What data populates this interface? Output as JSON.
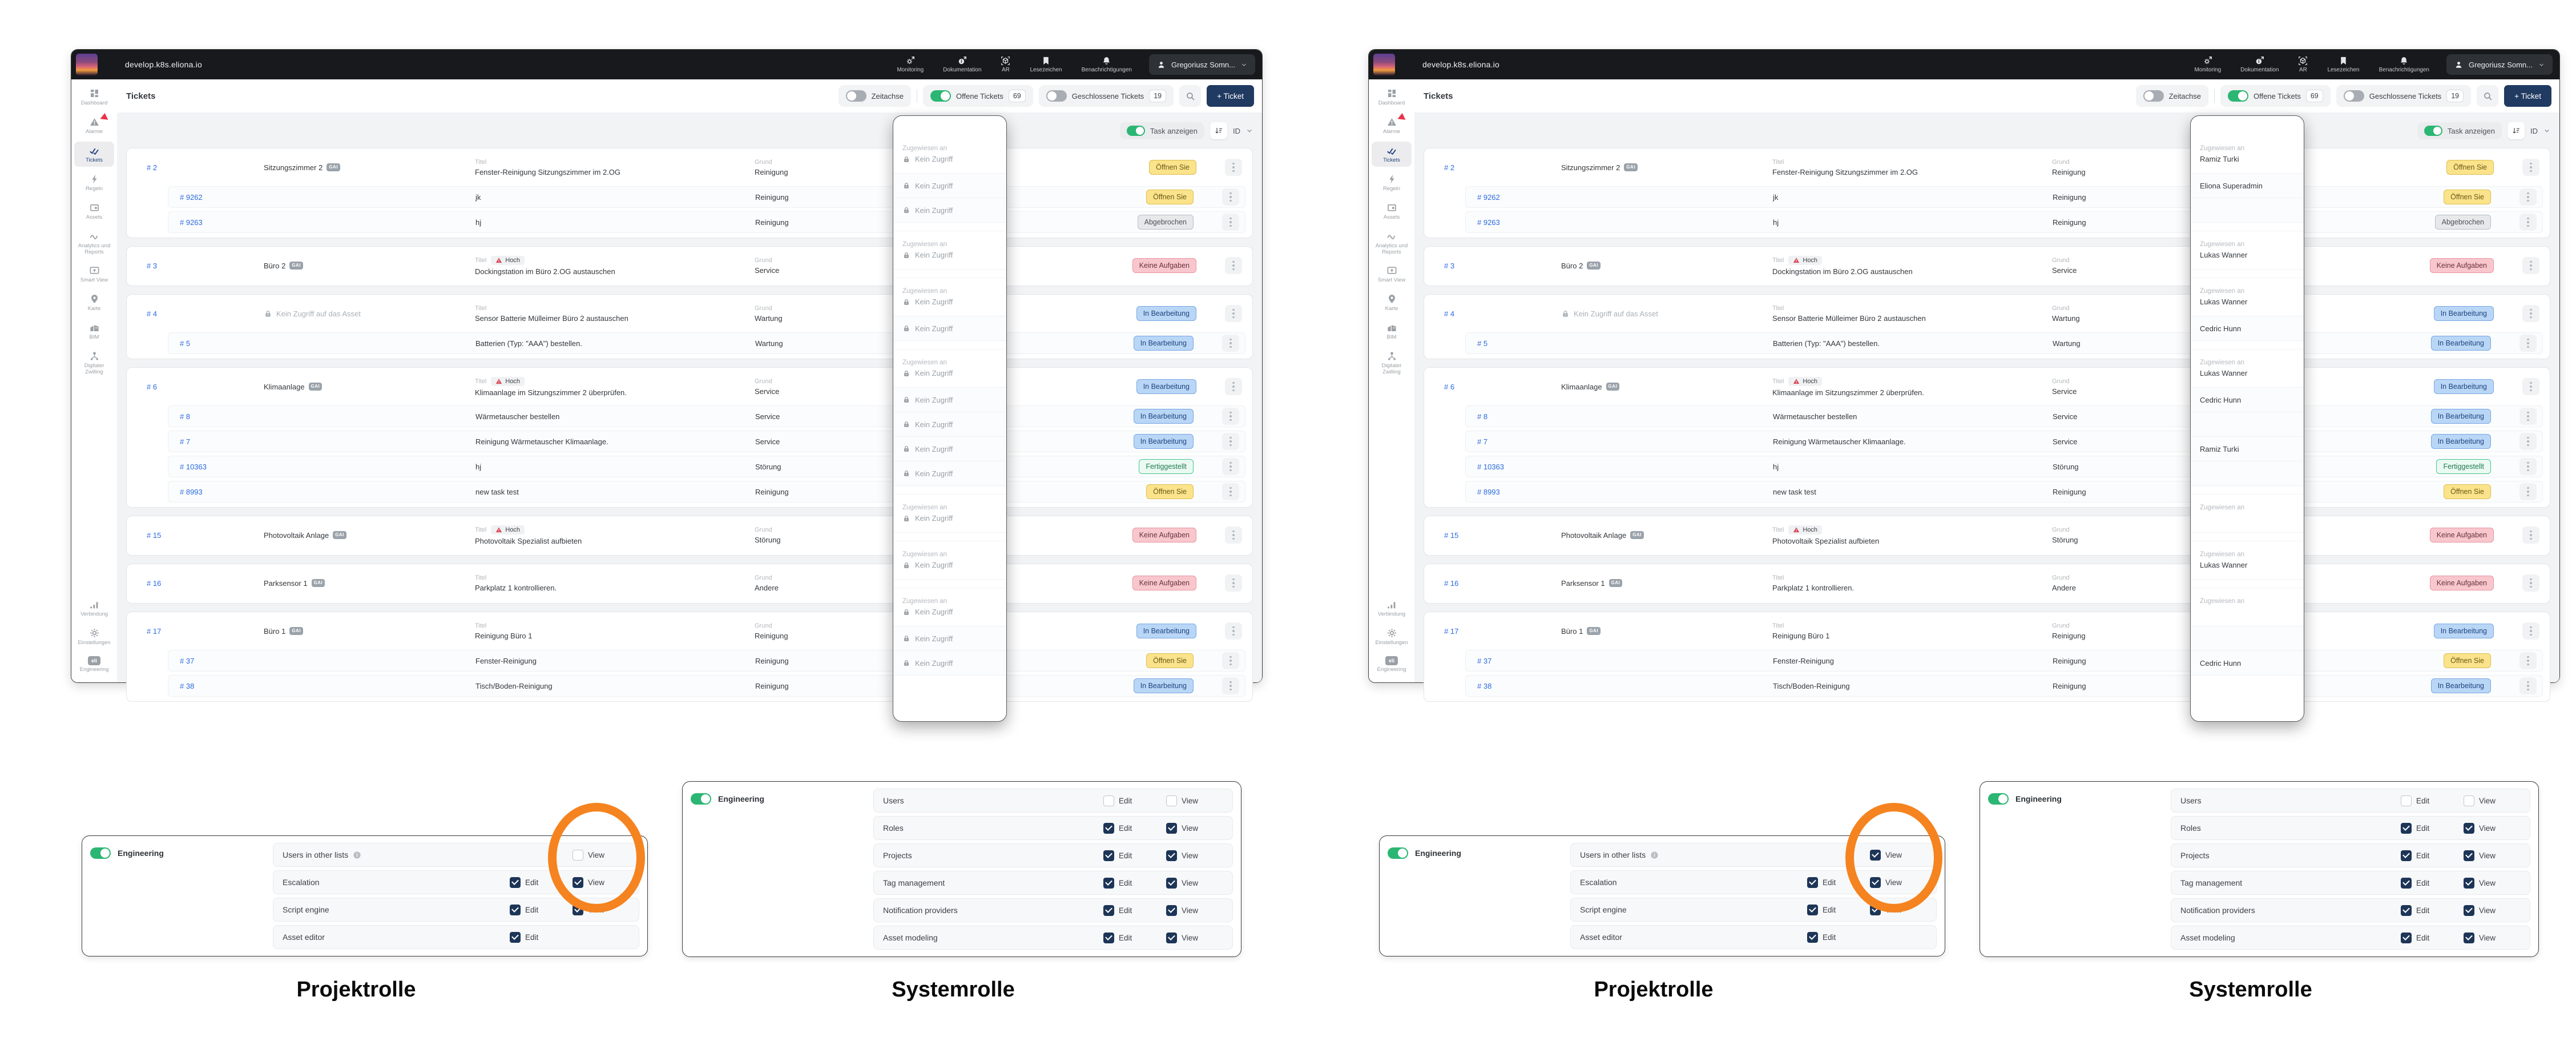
{
  "window": {
    "topbar": {
      "domain": "develop.k8s.eliona.io",
      "nav": [
        {
          "icon": "monitoring",
          "label": "Monitoring"
        },
        {
          "icon": "docs",
          "label": "Dokumentation"
        },
        {
          "icon": "ar",
          "label": "AR"
        },
        {
          "icon": "bookmark",
          "label": "Lesezeichen"
        },
        {
          "icon": "bell",
          "label": "Benachrichtigungen"
        }
      ],
      "user": "Gregoriusz Somn..."
    },
    "toolbar": {
      "title": "Tickets",
      "timeline_label": "Zeitachse",
      "open_label": "Offene Tickets",
      "open_count": "69",
      "closed_label": "Geschlossene Tickets",
      "closed_count": "19",
      "add_button": "+ Ticket"
    },
    "sidebar_top": [
      {
        "icon": "grid",
        "label": "Dashboard"
      },
      {
        "icon": "alarm",
        "label": "Alarme",
        "badge": true
      },
      {
        "icon": "tickets",
        "label": "Tickets",
        "active": true
      },
      {
        "icon": "bolt",
        "label": "Regeln"
      },
      {
        "icon": "assets",
        "label": "Assets"
      },
      {
        "icon": "wave",
        "label": "Analytics und Reports"
      },
      {
        "icon": "smartview",
        "label": "Smart View"
      },
      {
        "icon": "pin",
        "label": "Karte"
      },
      {
        "icon": "bim",
        "label": "BIM"
      },
      {
        "icon": "twin",
        "label": "Digitaler Zwilling"
      }
    ],
    "sidebar_bottom": [
      {
        "icon": "signal",
        "label": "Verbindung"
      },
      {
        "icon": "gear",
        "label": "Einstellungen"
      },
      {
        "icon": "eli",
        "label": "Engineering"
      }
    ],
    "list_header": {
      "task_toggle": "Task anzeigen",
      "sort_label": "ID"
    },
    "col_title": "Titel",
    "col_reason": "Grund",
    "assigned_label": "Zugewiesen an",
    "no_access": "Kein Zugriff",
    "no_asset_access": "Kein Zugriff auf das Asset",
    "gai_badge": "GAI"
  },
  "tickets": [
    {
      "id": "# 2",
      "asset": "Sitzungszimmer 2",
      "title": "Fenster-Reinigung Sitzungszimmer im 2.OG",
      "reason": "Reinigung",
      "status": "Öffnen Sie",
      "status_type": "open",
      "assignee": "Ramiz Turki",
      "subs": [
        {
          "id": "# 9262",
          "title": "jk",
          "reason": "Reinigung",
          "status": "Öffnen Sie",
          "status_type": "open",
          "assignee": "Eliona Superadmin"
        },
        {
          "id": "# 9263",
          "title": "hj",
          "reason": "Reinigung",
          "status": "Abgebrochen",
          "status_type": "cancelled",
          "assignee": ""
        }
      ]
    },
    {
      "id": "# 3",
      "asset": "Büro 2",
      "priority": "Hoch",
      "title": "Dockingstation im Büro 2.OG austauschen",
      "reason": "Service",
      "status": "Keine Aufgaben",
      "status_type": "none",
      "assignee": "Lukas Wanner",
      "subs": []
    },
    {
      "id": "# 4",
      "locked": true,
      "title": "Sensor Batterie Mülleimer Büro 2 austauschen",
      "reason": "Wartung",
      "status": "In Bearbeitung",
      "status_type": "progress",
      "assignee": "Lukas Wanner",
      "subs": [
        {
          "id": "# 5",
          "title": "Batterien (Typ: \"AAA\") bestellen.",
          "reason": "Wartung",
          "status": "In Bearbeitung",
          "status_type": "progress",
          "assignee": "Cedric Hunn"
        }
      ]
    },
    {
      "id": "# 6",
      "asset": "Klimaanlage",
      "priority": "Hoch",
      "title": "Klimaanlage im Sitzungszimmer 2 überprüfen.",
      "reason": "Service",
      "status": "In Bearbeitung",
      "status_type": "progress",
      "assignee": "Lukas Wanner",
      "subs": [
        {
          "id": "# 8",
          "title": "Wärmetauscher bestellen",
          "reason": "Service",
          "status": "In Bearbeitung",
          "status_type": "progress",
          "assignee": "Cedric Hunn"
        },
        {
          "id": "# 7",
          "title": "Reinigung Wärmetauscher Klimaanlage.",
          "reason": "Service",
          "status": "In Bearbeitung",
          "status_type": "progress",
          "assignee": ""
        },
        {
          "id": "# 10363",
          "title": "hj",
          "reason": "Störung",
          "status": "Fertiggestellt",
          "status_type": "done",
          "assignee": "Ramiz Turki"
        },
        {
          "id": "# 8993",
          "title": "new task test",
          "reason": "Reinigung",
          "status": "Öffnen Sie",
          "status_type": "open",
          "assignee": ""
        }
      ]
    },
    {
      "id": "# 15",
      "asset": "Photovoltaik Anlage",
      "priority": "Hoch",
      "title": "Photovoltaik Spezialist aufbieten",
      "reason": "Störung",
      "status": "Keine Aufgaben",
      "status_type": "none",
      "assignee": "",
      "subs": []
    },
    {
      "id": "# 16",
      "asset": "Parksensor 1",
      "title": "Parkplatz 1 kontrollieren.",
      "reason": "Andere",
      "status": "Keine Aufgaben",
      "status_type": "none",
      "assignee": "Lukas Wanner",
      "subs": []
    },
    {
      "id": "# 17",
      "asset": "Büro 1",
      "title": "Reinigung Büro 1",
      "reason": "Reinigung",
      "status": "In Bearbeitung",
      "status_type": "progress",
      "assignee": "",
      "subs": [
        {
          "id": "# 37",
          "title": "Fenster-Reinigung",
          "reason": "Reinigung",
          "status": "Öffnen Sie",
          "status_type": "open",
          "assignee": ""
        },
        {
          "id": "# 38",
          "title": "Tisch/Boden-Reinigung",
          "reason": "Reinigung",
          "status": "In Bearbeitung",
          "status_type": "progress",
          "assignee": "Cedric Hunn"
        }
      ]
    }
  ],
  "status_colors": {
    "open": "#fbe38b",
    "cancelled": "#e7e8ea",
    "none": "#f8c7cd",
    "progress": "#b9d6f6",
    "done": "#eafaf2"
  },
  "panels": {
    "toggle_label": "Engineering",
    "check_labels": {
      "edit": "Edit",
      "view": "View"
    },
    "project": {
      "rows": [
        {
          "label": "Users in other lists",
          "info": true,
          "view": {
            "left": false,
            "right": true,
            "circled": true
          }
        },
        {
          "label": "Escalation",
          "edit": {
            "left": true,
            "right": true
          },
          "view": {
            "left": true,
            "right": true
          }
        },
        {
          "label": "Script engine",
          "edit": {
            "left": true,
            "right": true
          },
          "view": {
            "left": true,
            "right": true
          }
        },
        {
          "label": "Asset editor",
          "edit": {
            "left": true,
            "right": true
          }
        }
      ]
    },
    "system": {
      "rows": [
        {
          "label": "Users",
          "edit": {
            "left": false,
            "right": false
          },
          "view": {
            "left": false,
            "right": false
          }
        },
        {
          "label": "Roles",
          "edit": {
            "left": true,
            "right": true
          },
          "view": {
            "left": true,
            "right": true
          }
        },
        {
          "label": "Projects",
          "edit": {
            "left": true,
            "right": true
          },
          "view": {
            "left": true,
            "right": true
          }
        },
        {
          "label": "Tag management",
          "edit": {
            "left": true,
            "right": true
          },
          "view": {
            "left": true,
            "right": true
          }
        },
        {
          "label": "Notification providers",
          "edit": {
            "left": true,
            "right": true
          },
          "view": {
            "left": true,
            "right": true
          }
        },
        {
          "label": "Asset modeling",
          "edit": {
            "left": true,
            "right": true
          },
          "view": {
            "left": true,
            "right": true
          }
        }
      ]
    }
  },
  "captions": {
    "project": "Projektrolle",
    "system": "Systemrolle"
  },
  "colors": {
    "accent_green": "#2cb673",
    "navy": "#1d3557",
    "add_button": "#203a61",
    "highlight_circle": "#f5831f",
    "topbar_bg": "#17191d",
    "link_blue": "#2a6ae0"
  }
}
